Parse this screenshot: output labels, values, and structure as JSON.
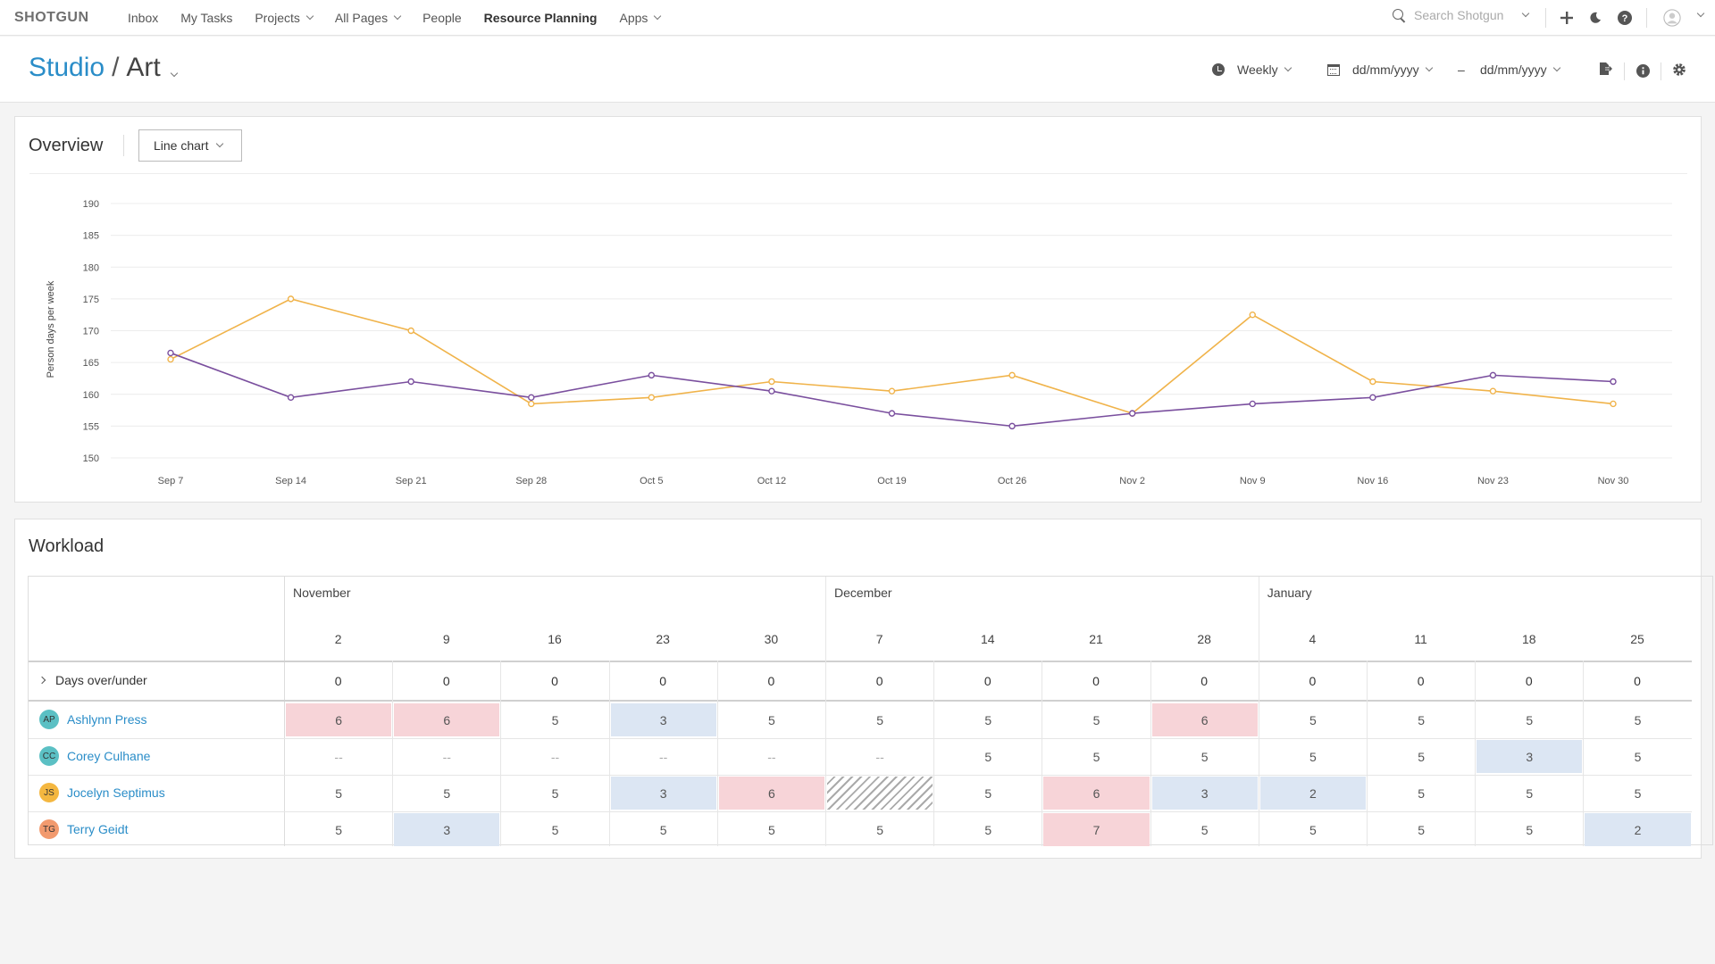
{
  "nav": {
    "logo": "SHOTGUN",
    "items": [
      {
        "label": "Inbox",
        "has_dropdown": false,
        "active": false
      },
      {
        "label": "My Tasks",
        "has_dropdown": false,
        "active": false
      },
      {
        "label": "Projects",
        "has_dropdown": true,
        "active": false
      },
      {
        "label": "All Pages",
        "has_dropdown": true,
        "active": false
      },
      {
        "label": "People",
        "has_dropdown": false,
        "active": false
      },
      {
        "label": "Resource Planning",
        "has_dropdown": false,
        "active": true
      },
      {
        "label": "Apps",
        "has_dropdown": true,
        "active": false
      }
    ],
    "search_placeholder": "Search Shotgun",
    "icons": [
      "search-icon",
      "plus-icon",
      "moon-icon",
      "help-icon",
      "user-icon"
    ]
  },
  "header": {
    "breadcrumb_root": "Studio",
    "breadcrumb_separator": "/",
    "breadcrumb_current": "Art",
    "interval": "Weekly",
    "start_date": "dd/mm/yyyy",
    "date_separator": "–",
    "end_date": "dd/mm/yyyy"
  },
  "overview": {
    "title": "Overview",
    "chart_type_label": "Line chart"
  },
  "chart_data": {
    "type": "line",
    "title": "",
    "xlabel": "",
    "ylabel": "Person days per week",
    "ylim": [
      150,
      190
    ],
    "yticks": [
      150,
      155,
      160,
      165,
      170,
      175,
      180,
      185,
      190
    ],
    "grid": true,
    "categories": [
      "Sep 7",
      "Sep 14",
      "Sep 21",
      "Sep 28",
      "Oct 5",
      "Oct 12",
      "Oct 19",
      "Oct 26",
      "Nov 2",
      "Nov 9",
      "Nov 16",
      "Nov 23",
      "Nov 30"
    ],
    "series": [
      {
        "color": "#7a4f9e",
        "values": [
          166.5,
          159.5,
          162,
          159.5,
          163,
          160.5,
          157,
          155,
          157,
          158.5,
          159.5,
          163,
          162
        ]
      },
      {
        "color": "#f0b34a",
        "values": [
          165.5,
          175,
          170,
          158.5,
          159.5,
          162,
          160.5,
          163,
          157,
          172.5,
          162,
          160.5,
          158.5
        ]
      }
    ]
  },
  "workload": {
    "title": "Workload",
    "months": [
      {
        "label": "November"
      },
      {
        "label": "December"
      },
      {
        "label": "January"
      }
    ],
    "weeks": [
      "2",
      "9",
      "16",
      "23",
      "30",
      "7",
      "14",
      "21",
      "28",
      "4",
      "11",
      "18",
      "25"
    ],
    "summary_row": {
      "label": "Days over/under",
      "values": [
        "0",
        "0",
        "0",
        "0",
        "0",
        "0",
        "0",
        "0",
        "0",
        "0",
        "0",
        "0",
        "0"
      ]
    },
    "colors": {
      "over": "#f7d4d8",
      "under": "#dce6f3",
      "link": "#2a8dc8"
    },
    "people": [
      {
        "initials": "AP",
        "name": "Ashlynn Press",
        "avatar_color": "#5bc0c4",
        "cells": [
          {
            "v": "6",
            "s": "over"
          },
          {
            "v": "6",
            "s": "over"
          },
          {
            "v": "5",
            "s": ""
          },
          {
            "v": "3",
            "s": "under"
          },
          {
            "v": "5",
            "s": ""
          },
          {
            "v": "5",
            "s": ""
          },
          {
            "v": "5",
            "s": ""
          },
          {
            "v": "5",
            "s": ""
          },
          {
            "v": "6",
            "s": "over"
          },
          {
            "v": "5",
            "s": ""
          },
          {
            "v": "5",
            "s": ""
          },
          {
            "v": "5",
            "s": ""
          },
          {
            "v": "5",
            "s": ""
          }
        ]
      },
      {
        "initials": "CC",
        "name": "Corey Culhane",
        "avatar_color": "#5bc0c4",
        "cells": [
          {
            "v": "--",
            "s": "none"
          },
          {
            "v": "--",
            "s": "none"
          },
          {
            "v": "--",
            "s": "none"
          },
          {
            "v": "--",
            "s": "none"
          },
          {
            "v": "--",
            "s": "none"
          },
          {
            "v": "--",
            "s": "none"
          },
          {
            "v": "5",
            "s": ""
          },
          {
            "v": "5",
            "s": ""
          },
          {
            "v": "5",
            "s": ""
          },
          {
            "v": "5",
            "s": ""
          },
          {
            "v": "5",
            "s": ""
          },
          {
            "v": "3",
            "s": "under"
          },
          {
            "v": "5",
            "s": ""
          }
        ]
      },
      {
        "initials": "JS",
        "name": "Jocelyn Septimus",
        "avatar_color": "#f4b740",
        "cells": [
          {
            "v": "5",
            "s": ""
          },
          {
            "v": "5",
            "s": ""
          },
          {
            "v": "5",
            "s": ""
          },
          {
            "v": "3",
            "s": "under"
          },
          {
            "v": "6",
            "s": "over"
          },
          {
            "v": "",
            "s": "hatch"
          },
          {
            "v": "5",
            "s": ""
          },
          {
            "v": "6",
            "s": "over"
          },
          {
            "v": "3",
            "s": "under"
          },
          {
            "v": "2",
            "s": "under"
          },
          {
            "v": "5",
            "s": ""
          },
          {
            "v": "5",
            "s": ""
          },
          {
            "v": "5",
            "s": ""
          }
        ]
      },
      {
        "initials": "TG",
        "name": "Terry Geidt",
        "avatar_color": "#f29a6e",
        "cells": [
          {
            "v": "5",
            "s": ""
          },
          {
            "v": "3",
            "s": "under"
          },
          {
            "v": "5",
            "s": ""
          },
          {
            "v": "5",
            "s": ""
          },
          {
            "v": "5",
            "s": ""
          },
          {
            "v": "5",
            "s": ""
          },
          {
            "v": "5",
            "s": ""
          },
          {
            "v": "7",
            "s": "over"
          },
          {
            "v": "5",
            "s": ""
          },
          {
            "v": "5",
            "s": ""
          },
          {
            "v": "5",
            "s": ""
          },
          {
            "v": "5",
            "s": ""
          },
          {
            "v": "2",
            "s": "under"
          }
        ]
      }
    ]
  }
}
